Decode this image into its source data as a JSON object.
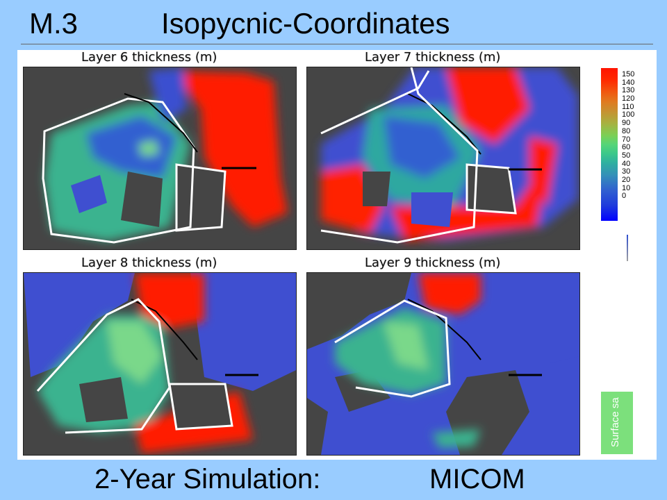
{
  "slide": {
    "number": "M.3",
    "title": "Isopycnic-Coordinates",
    "footer_label": "2-Year Simulation:",
    "footer_model": "MICOM"
  },
  "panels": [
    {
      "label": "Layer 6 thickness (m)"
    },
    {
      "label": "Layer 7 thickness (m)"
    },
    {
      "label": "Layer 8 thickness (m)"
    },
    {
      "label": "Layer 9 thickness (m)"
    }
  ],
  "colorbar": {
    "ticks": [
      "150",
      "140",
      "130",
      "120",
      "110",
      "100",
      "90",
      "80",
      "70",
      "60",
      "50",
      "40",
      "30",
      "20",
      "10",
      "0"
    ],
    "colors": {
      "high": "#ff1400",
      "mid": "#55d578",
      "low": "#0000ff"
    }
  },
  "surface_label": "Surface sa",
  "colors": {
    "land": "#454545",
    "ocean_low": "#3f4fd0",
    "high": "#ff1a00",
    "mid": "#5cc88a",
    "background": "#99ccff"
  }
}
